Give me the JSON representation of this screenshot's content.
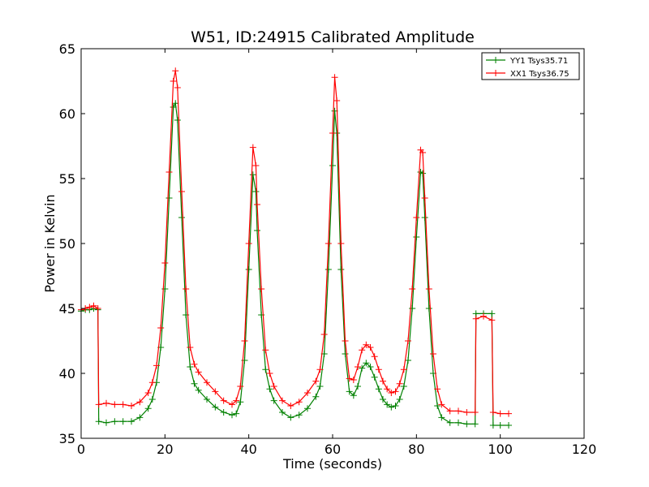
{
  "chart_data": {
    "type": "line",
    "title": "W51, ID:24915 Calibrated Amplitude",
    "xlabel": "Time (seconds)",
    "ylabel": "Power in Kelvin",
    "xlim": [
      0,
      120
    ],
    "ylim": [
      35,
      65
    ],
    "xticks": [
      0,
      20,
      40,
      60,
      80,
      100,
      120
    ],
    "yticks": [
      35,
      40,
      45,
      50,
      55,
      60,
      65
    ],
    "grid": false,
    "legend_position": "top-right",
    "markers": "plus",
    "series": [
      {
        "name": "YY1 Tsys35.71",
        "color": "#008000",
        "points": [
          [
            0.0,
            44.8
          ],
          [
            1.0,
            44.9
          ],
          [
            2.0,
            44.9
          ],
          [
            3.0,
            45.0
          ],
          [
            4.0,
            44.9
          ],
          [
            4.2,
            36.3
          ],
          [
            6.0,
            36.2
          ],
          [
            8.0,
            36.3
          ],
          [
            10.0,
            36.3
          ],
          [
            12.0,
            36.3
          ],
          [
            14.0,
            36.6
          ],
          [
            16.0,
            37.3
          ],
          [
            17.0,
            38.0
          ],
          [
            18.0,
            39.3
          ],
          [
            19.0,
            42.0
          ],
          [
            20.0,
            46.5
          ],
          [
            21.0,
            53.5
          ],
          [
            22.0,
            60.5
          ],
          [
            22.5,
            60.8
          ],
          [
            23.0,
            59.5
          ],
          [
            24.0,
            52.0
          ],
          [
            25.0,
            44.5
          ],
          [
            26.0,
            40.5
          ],
          [
            27.0,
            39.2
          ],
          [
            28.0,
            38.7
          ],
          [
            30.0,
            38.0
          ],
          [
            32.0,
            37.4
          ],
          [
            34.0,
            37.0
          ],
          [
            36.0,
            36.8
          ],
          [
            37.0,
            36.9
          ],
          [
            38.0,
            37.8
          ],
          [
            39.0,
            41.0
          ],
          [
            40.0,
            48.0
          ],
          [
            41.0,
            55.3
          ],
          [
            41.7,
            54.0
          ],
          [
            42.0,
            51.0
          ],
          [
            43.0,
            44.5
          ],
          [
            44.0,
            40.3
          ],
          [
            45.0,
            38.8
          ],
          [
            46.0,
            37.9
          ],
          [
            48.0,
            37.0
          ],
          [
            50.0,
            36.6
          ],
          [
            52.0,
            36.8
          ],
          [
            54.0,
            37.3
          ],
          [
            56.0,
            38.2
          ],
          [
            57.0,
            39.0
          ],
          [
            58.0,
            41.5
          ],
          [
            59.0,
            48.0
          ],
          [
            60.0,
            56.0
          ],
          [
            60.5,
            60.2
          ],
          [
            61.0,
            58.5
          ],
          [
            62.0,
            48.0
          ],
          [
            63.0,
            41.5
          ],
          [
            64.0,
            38.6
          ],
          [
            65.0,
            38.3
          ],
          [
            66.0,
            39.0
          ],
          [
            67.0,
            40.4
          ],
          [
            68.0,
            40.8
          ],
          [
            69.0,
            40.5
          ],
          [
            70.0,
            39.7
          ],
          [
            71.0,
            38.8
          ],
          [
            72.0,
            38.0
          ],
          [
            73.0,
            37.6
          ],
          [
            74.0,
            37.4
          ],
          [
            75.0,
            37.5
          ],
          [
            76.0,
            38.0
          ],
          [
            77.0,
            39.0
          ],
          [
            78.0,
            41.0
          ],
          [
            79.0,
            45.0
          ],
          [
            80.0,
            50.5
          ],
          [
            81.0,
            55.5
          ],
          [
            81.5,
            55.4
          ],
          [
            82.0,
            52.0
          ],
          [
            83.0,
            45.0
          ],
          [
            84.0,
            40.0
          ],
          [
            85.0,
            37.5
          ],
          [
            86.0,
            36.6
          ],
          [
            88.0,
            36.2
          ],
          [
            90.0,
            36.2
          ],
          [
            92.0,
            36.1
          ],
          [
            94.0,
            36.1
          ],
          [
            94.2,
            44.6
          ],
          [
            96.0,
            44.6
          ],
          [
            98.0,
            44.6
          ],
          [
            98.3,
            36.0
          ],
          [
            100.0,
            36.0
          ],
          [
            102.0,
            36.0
          ]
        ]
      },
      {
        "name": "XX1 Tsys36.75",
        "color": "#ff0000",
        "points": [
          [
            0.0,
            44.9
          ],
          [
            1.0,
            45.0
          ],
          [
            2.0,
            45.1
          ],
          [
            3.0,
            45.2
          ],
          [
            4.0,
            45.0
          ],
          [
            4.2,
            37.6
          ],
          [
            6.0,
            37.7
          ],
          [
            8.0,
            37.6
          ],
          [
            10.0,
            37.6
          ],
          [
            12.0,
            37.5
          ],
          [
            14.0,
            37.8
          ],
          [
            16.0,
            38.5
          ],
          [
            17.0,
            39.3
          ],
          [
            18.0,
            40.6
          ],
          [
            19.0,
            43.5
          ],
          [
            20.0,
            48.5
          ],
          [
            21.0,
            55.5
          ],
          [
            22.0,
            62.5
          ],
          [
            22.5,
            63.3
          ],
          [
            23.0,
            62.0
          ],
          [
            24.0,
            54.0
          ],
          [
            25.0,
            46.5
          ],
          [
            26.0,
            42.0
          ],
          [
            27.0,
            40.7
          ],
          [
            28.0,
            40.1
          ],
          [
            30.0,
            39.3
          ],
          [
            32.0,
            38.6
          ],
          [
            34.0,
            37.9
          ],
          [
            36.0,
            37.6
          ],
          [
            37.0,
            37.9
          ],
          [
            38.0,
            39.0
          ],
          [
            39.0,
            42.5
          ],
          [
            40.0,
            50.0
          ],
          [
            41.0,
            57.4
          ],
          [
            41.7,
            56.0
          ],
          [
            42.0,
            53.0
          ],
          [
            43.0,
            46.5
          ],
          [
            44.0,
            41.8
          ],
          [
            45.0,
            40.0
          ],
          [
            46.0,
            39.0
          ],
          [
            48.0,
            37.9
          ],
          [
            50.0,
            37.5
          ],
          [
            52.0,
            37.8
          ],
          [
            54.0,
            38.5
          ],
          [
            56.0,
            39.4
          ],
          [
            57.0,
            40.3
          ],
          [
            58.0,
            43.0
          ],
          [
            59.0,
            50.0
          ],
          [
            60.0,
            58.5
          ],
          [
            60.5,
            62.8
          ],
          [
            61.0,
            61.0
          ],
          [
            62.0,
            50.0
          ],
          [
            63.0,
            42.5
          ],
          [
            64.0,
            39.6
          ],
          [
            65.0,
            39.5
          ],
          [
            66.0,
            40.5
          ],
          [
            67.0,
            41.8
          ],
          [
            68.0,
            42.2
          ],
          [
            69.0,
            42.0
          ],
          [
            70.0,
            41.3
          ],
          [
            71.0,
            40.3
          ],
          [
            72.0,
            39.4
          ],
          [
            73.0,
            38.8
          ],
          [
            74.0,
            38.5
          ],
          [
            75.0,
            38.6
          ],
          [
            76.0,
            39.2
          ],
          [
            77.0,
            40.3
          ],
          [
            78.0,
            42.5
          ],
          [
            79.0,
            46.5
          ],
          [
            80.0,
            52.0
          ],
          [
            81.0,
            57.2
          ],
          [
            81.5,
            57.0
          ],
          [
            82.0,
            53.5
          ],
          [
            83.0,
            46.5
          ],
          [
            84.0,
            41.5
          ],
          [
            85.0,
            38.8
          ],
          [
            86.0,
            37.6
          ],
          [
            88.0,
            37.1
          ],
          [
            90.0,
            37.1
          ],
          [
            92.0,
            37.0
          ],
          [
            94.0,
            37.0
          ],
          [
            94.2,
            44.2
          ],
          [
            96.0,
            44.4
          ],
          [
            98.0,
            44.1
          ],
          [
            98.3,
            37.0
          ],
          [
            100.0,
            36.9
          ],
          [
            102.0,
            36.9
          ]
        ]
      }
    ]
  }
}
